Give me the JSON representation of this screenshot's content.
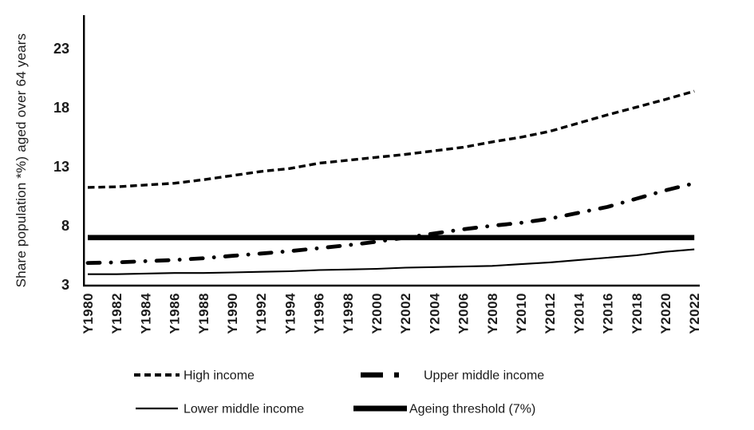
{
  "figure": {
    "background": "#ffffff",
    "line_color": "#000000",
    "text_color": "#1a1a1a"
  },
  "chart_data": {
    "type": "line",
    "title": "",
    "xlabel": "",
    "ylabel": "Share population *%) aged over 64 years",
    "categories": [
      "Y1980",
      "Y1982",
      "Y1984",
      "Y1986",
      "Y1988",
      "Y1990",
      "Y1992",
      "Y1994",
      "Y1996",
      "Y1998",
      "Y2000",
      "Y2002",
      "Y2004",
      "Y2006",
      "Y2008",
      "Y2010",
      "Y2012",
      "Y2014",
      "Y2016",
      "Y2018",
      "Y2020",
      "Y2022"
    ],
    "yticks": [
      3,
      8,
      13,
      18,
      23
    ],
    "ylim": [
      3,
      25.5
    ],
    "grid": false,
    "series": [
      {
        "name": "High income",
        "line_style": "dashed",
        "color": "#000000",
        "values": [
          11.25,
          11.3,
          11.45,
          11.6,
          11.9,
          12.25,
          12.6,
          12.85,
          13.3,
          13.55,
          13.8,
          14.05,
          14.35,
          14.65,
          15.1,
          15.5,
          16.0,
          16.7,
          17.4,
          18.05,
          18.7,
          19.4
        ]
      },
      {
        "name": "Upper middle income",
        "line_style": "dash-dot",
        "color": "#000000",
        "values": [
          4.85,
          4.9,
          5.0,
          5.1,
          5.25,
          5.45,
          5.65,
          5.85,
          6.1,
          6.35,
          6.65,
          7.0,
          7.35,
          7.7,
          8.0,
          8.25,
          8.6,
          9.1,
          9.6,
          10.3,
          11.0,
          11.6
        ]
      },
      {
        "name": "Lower middle income",
        "line_style": "solid",
        "color": "#000000",
        "values": [
          3.9,
          3.9,
          3.95,
          4.0,
          4.0,
          4.05,
          4.1,
          4.15,
          4.25,
          4.3,
          4.35,
          4.45,
          4.5,
          4.55,
          4.6,
          4.75,
          4.9,
          5.1,
          5.3,
          5.5,
          5.8,
          6.0
        ]
      },
      {
        "name": "Ageing threshold (7%)",
        "line_style": "solid-thick",
        "color": "#000000",
        "values": [
          7,
          7,
          7,
          7,
          7,
          7,
          7,
          7,
          7,
          7,
          7,
          7,
          7,
          7,
          7,
          7,
          7,
          7,
          7,
          7,
          7,
          7
        ]
      }
    ],
    "legend": {
      "position": "bottom",
      "items": [
        "High income",
        "Upper middle income",
        "Lower middle income",
        "Ageing threshold (7%)"
      ]
    }
  }
}
